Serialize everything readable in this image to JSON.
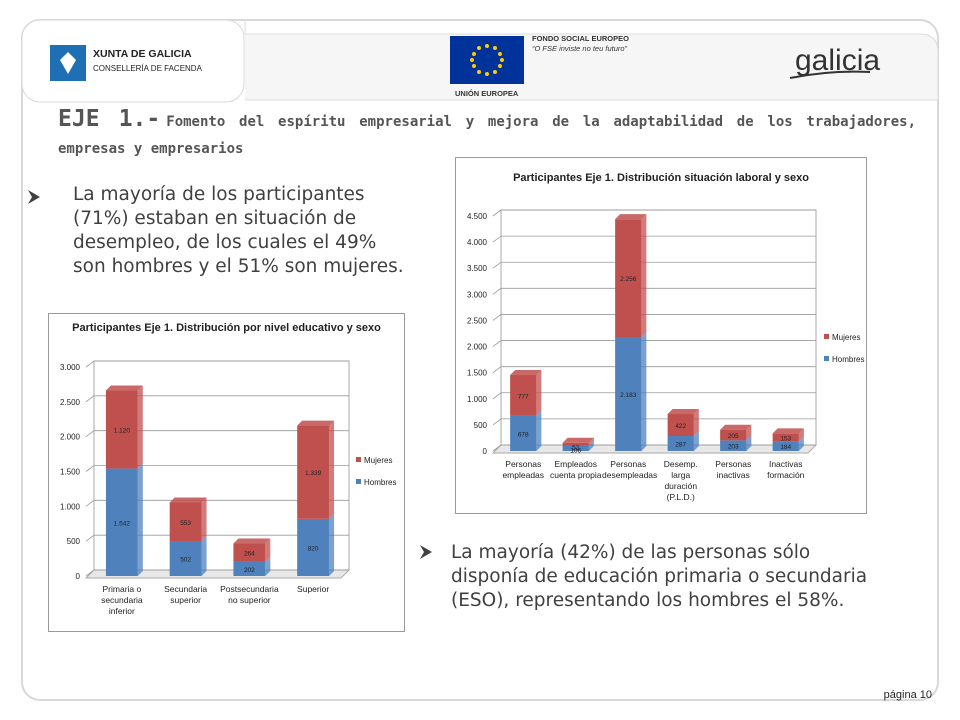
{
  "header": {
    "xunta_name": "XUNTA DE GALICIA",
    "xunta_dept": "CONSELLERÍA DE FACENDA",
    "fse_name": "FONDO SOCIAL EUROPEO",
    "fse_motto": "“O FSE inviste no teu futuro”",
    "eu_name": "UNIÓN EUROPEA",
    "galicia": "galicia"
  },
  "title": {
    "prefix": "EJE 1.-",
    "text": "Fomento del espíritu empresarial y mejora de la adaptabilidad de los trabajadores, empresas y empresarios"
  },
  "bullets": [
    "La mayoría de los participantes (71%) estaban en situación de desempleo, de los cuales el 49% son hombres y el 51% son mujeres.",
    "La mayoría (42%) de las personas sólo disponía de educación primaria o secundaria (ESO), representando los hombres el 58%."
  ],
  "footer": "página 10",
  "chart_data": [
    {
      "type": "bar",
      "stacked": true,
      "title": "Participantes Eje 1. Distribución situación laboral y sexo",
      "categories": [
        "Personas empleadas",
        "Empleados cuenta propia",
        "Personas desempleadas",
        "Desemp. larga duración (P.L.D.)",
        "Personas inactivas",
        "Inactivas formación"
      ],
      "series": [
        {
          "name": "Hombres",
          "color": "#4f81bd",
          "values": [
            678,
            106,
            2183,
            287,
            203,
            184
          ],
          "value_labels": [
            "678",
            "106",
            "2.183",
            "287",
            "203",
            "184"
          ]
        },
        {
          "name": "Mujeres",
          "color": "#c0504d",
          "values": [
            777,
            52,
            2256,
            422,
            205,
            153
          ],
          "value_labels": [
            "777",
            "52",
            "2.256",
            "422",
            "205",
            "153"
          ]
        }
      ],
      "ylim": [
        0,
        4500
      ],
      "yticks": [
        0,
        500,
        {
          "value": 1000,
          "label": "1.000"
        },
        {
          "value": 1500,
          "label": "1.500"
        },
        {
          "value": 2000,
          "label": "2.000"
        },
        {
          "value": 2500,
          "label": "2.500"
        },
        {
          "value": 3000,
          "label": "3.000"
        },
        {
          "value": 3500,
          "label": "3.500"
        },
        {
          "value": 4000,
          "label": "4.000"
        },
        {
          "value": 4500,
          "label": "4.500"
        }
      ],
      "grid": true,
      "legend": "right"
    },
    {
      "type": "bar",
      "stacked": true,
      "title": "Participantes Eje 1. Distribución por nivel educativo y sexo",
      "categories": [
        "Primaria o secundaria inferior",
        "Secundaria superior",
        "Postsecundaria no superior",
        "Superior"
      ],
      "series": [
        {
          "name": "Hombres",
          "color": "#4f81bd",
          "values": [
            1542,
            502,
            202,
            820
          ],
          "value_labels": [
            "1.542",
            "502",
            "202",
            "820"
          ]
        },
        {
          "name": "Mujeres",
          "color": "#c0504d",
          "values": [
            1120,
            553,
            264,
            1339
          ],
          "value_labels": [
            "1.120",
            "553",
            "264",
            "1.339"
          ]
        }
      ],
      "ylim": [
        0,
        3000
      ],
      "yticks": [
        0,
        500,
        {
          "value": 1000,
          "label": "1.000"
        },
        {
          "value": 1500,
          "label": "1.500"
        },
        {
          "value": 2000,
          "label": "2.000"
        },
        {
          "value": 2500,
          "label": "2.500"
        },
        {
          "value": 3000,
          "label": "3.000"
        }
      ],
      "grid": true,
      "legend": "right"
    }
  ]
}
